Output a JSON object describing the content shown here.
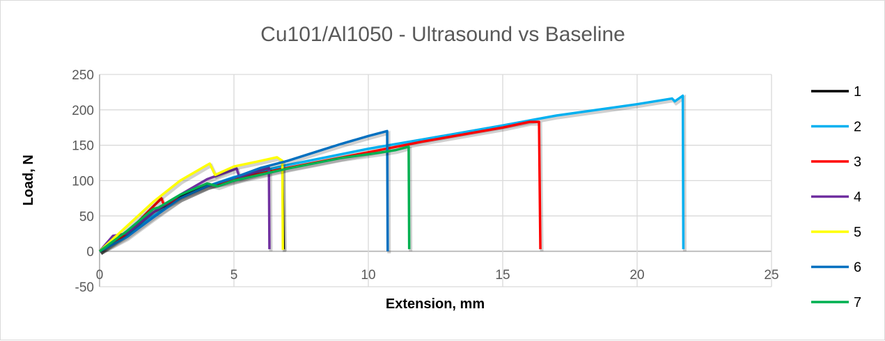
{
  "chart_data": {
    "type": "line",
    "title": "Cu101/Al1050 - Ultrasound vs Baseline",
    "xlabel": "Extension, mm",
    "ylabel": "Load, N",
    "xlim": [
      0,
      25
    ],
    "ylim": [
      -50,
      250
    ],
    "xticks": [
      "0",
      "5",
      "10",
      "15",
      "20",
      "25"
    ],
    "yticks": [
      "-50",
      "0",
      "50",
      "100",
      "150",
      "200",
      "250"
    ],
    "grid": true,
    "legend_position": "right",
    "series": [
      {
        "name": "1",
        "color": "#000000",
        "x": [
          0,
          1,
          2,
          3,
          4,
          5,
          6,
          6.8,
          6.85
        ],
        "y": [
          0,
          25,
          55,
          78,
          93,
          100,
          112,
          120,
          3
        ]
      },
      {
        "name": "2",
        "color": "#00b0f0",
        "x": [
          0,
          1,
          2,
          3,
          4,
          5,
          7,
          10,
          12,
          15,
          17,
          20,
          21.3,
          21.4,
          21.7,
          21.72
        ],
        "y": [
          0,
          22,
          50,
          75,
          92,
          105,
          122,
          145,
          158,
          178,
          192,
          208,
          216,
          212,
          220,
          3
        ]
      },
      {
        "name": "3",
        "color": "#ff0000",
        "x": [
          0,
          1,
          2.3,
          2.4,
          3,
          4,
          5,
          7,
          10,
          12,
          15,
          16,
          16.35,
          16.4
        ],
        "y": [
          0,
          25,
          75,
          65,
          75,
          92,
          102,
          118,
          140,
          155,
          175,
          183,
          183,
          3
        ]
      },
      {
        "name": "4",
        "color": "#7030a0",
        "x": [
          0,
          0.5,
          1,
          2,
          3,
          4,
          5.1,
          5.2,
          6.3,
          6.32
        ],
        "y": [
          0,
          22,
          25,
          55,
          80,
          102,
          117,
          105,
          118,
          3
        ]
      },
      {
        "name": "5",
        "color": "#ffff00",
        "x": [
          0,
          1,
          2,
          3,
          4,
          4.1,
          4.3,
          5,
          6,
          6.6,
          6.8,
          6.82
        ],
        "y": [
          0,
          35,
          70,
          100,
          122,
          124,
          108,
          120,
          128,
          133,
          128,
          2
        ]
      },
      {
        "name": "6",
        "color": "#0070c0",
        "x": [
          0,
          1,
          2,
          3,
          4,
          5,
          6,
          7,
          8,
          9,
          10,
          10.7,
          10.72
        ],
        "y": [
          0,
          20,
          48,
          75,
          92,
          104,
          118,
          128,
          140,
          152,
          163,
          170,
          0
        ]
      },
      {
        "name": "7",
        "color": "#00b050",
        "x": [
          0,
          1,
          2,
          2.2,
          3,
          4,
          4.4,
          5,
          7,
          9,
          10.5,
          11,
          11.5,
          11.52
        ],
        "y": [
          0,
          28,
          60,
          62,
          80,
          96,
          92,
          100,
          117,
          132,
          140,
          143,
          148,
          3
        ]
      }
    ]
  }
}
